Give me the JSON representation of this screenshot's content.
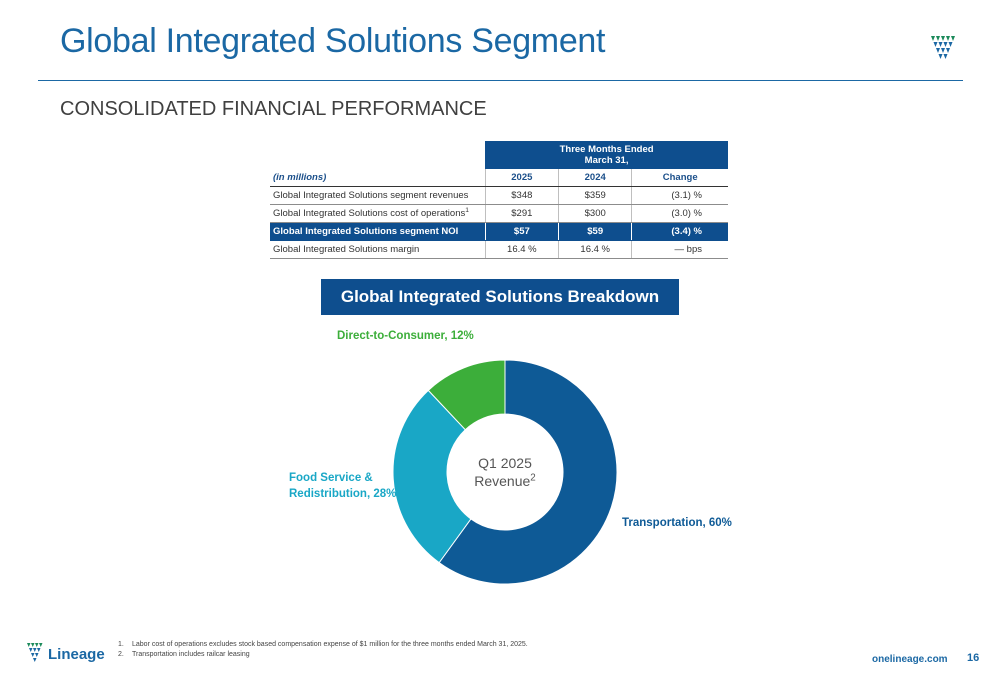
{
  "header": {
    "title": "Global Integrated Solutions Segment",
    "subtitle": "CONSOLIDATED FINANCIAL PERFORMANCE"
  },
  "table": {
    "band_line1": "Three Months Ended",
    "band_line2": "March 31,",
    "unit_label": "(in millions)",
    "col_2025": "2025",
    "col_2024": "2024",
    "col_change": "Change",
    "rows": [
      {
        "label": "Global Integrated Solutions segment revenues",
        "sup": "",
        "v2025": "$348",
        "v2024": "$359",
        "change": "(3.1) %"
      },
      {
        "label": "Global Integrated Solutions cost of operations",
        "sup": "1",
        "v2025": "$291",
        "v2024": "$300",
        "change": "(3.0) %"
      },
      {
        "label": "Global Integrated Solutions segment NOI",
        "sup": "",
        "v2025": "$57",
        "v2024": "$59",
        "change": "(3.4) %"
      },
      {
        "label": "Global Integrated Solutions margin",
        "sup": "",
        "v2025": "16.4 %",
        "v2024": "16.4 %",
        "change": "— bps"
      }
    ]
  },
  "breakdown": {
    "banner": "Global Integrated Solutions Breakdown",
    "center_line1": "Q1 2025",
    "center_line2": "Revenue",
    "center_sup": "2"
  },
  "chart_data": {
    "type": "pie",
    "categories": [
      "Transportation",
      "Food Service & Redistribution",
      "Direct-to-Consumer"
    ],
    "values": [
      60,
      28,
      12
    ],
    "colors": [
      "#0e5a96",
      "#19a7c6",
      "#3cae3a"
    ],
    "labels": {
      "transportation": "Transportation, 60%",
      "food_service_1": "Food Service &",
      "food_service_2": "Redistribution, 28%",
      "dtc": "Direct-to-Consumer, 12%"
    }
  },
  "footer": {
    "brand": "Lineage",
    "footnote_1_num": "1.",
    "footnote_1": "Labor cost of operations excludes stock based compensation expense of $1 million for the three months ended March 31, 2025.",
    "footnote_2_num": "2.",
    "footnote_2": "Transportation includes railcar leasing",
    "site": "onelineage.com",
    "page": "16"
  },
  "colors": {
    "brand_blue": "#1b68a4",
    "navy": "#0e4e8e",
    "teal": "#19a7c6",
    "green": "#3cae3a"
  }
}
